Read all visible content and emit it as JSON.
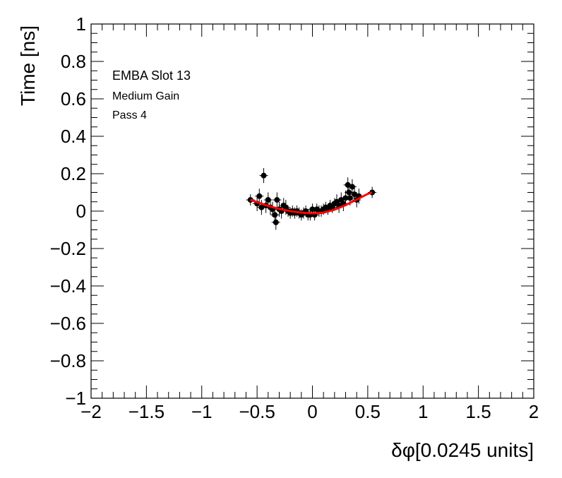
{
  "chart_data": {
    "type": "scatter",
    "title": "",
    "xlabel": "δφ[0.0245 units]",
    "ylabel": "Time [ns]",
    "xlim": [
      -2,
      2
    ],
    "ylim": [
      -1,
      1
    ],
    "x_ticks": [
      "−2",
      "−1.5",
      "−1",
      "−0.5",
      "0",
      "0.5",
      "1",
      "1.5",
      "2"
    ],
    "y_ticks": [
      "1",
      "0.8",
      "0.6",
      "0.4",
      "0.2",
      "0",
      "−0.2",
      "−0.4",
      "−0.6",
      "−0.8",
      "−1"
    ],
    "annotations": [
      "EMBA Slot 13",
      "Medium Gain",
      "Pass 4"
    ],
    "grid": false,
    "colors": {
      "points": "#000000",
      "fit": "#ff0000"
    },
    "series": [
      {
        "kind": "points-with-error-bars",
        "x": [
          -0.56,
          -0.5,
          -0.48,
          -0.46,
          -0.44,
          -0.42,
          -0.4,
          -0.38,
          -0.36,
          -0.34,
          -0.33,
          -0.32,
          -0.3,
          -0.28,
          -0.26,
          -0.24,
          -0.22,
          -0.2,
          -0.18,
          -0.16,
          -0.14,
          -0.12,
          -0.1,
          -0.08,
          -0.06,
          -0.04,
          -0.02,
          0.0,
          0.02,
          0.04,
          0.06,
          0.08,
          0.1,
          0.12,
          0.14,
          0.16,
          0.18,
          0.2,
          0.22,
          0.24,
          0.26,
          0.28,
          0.3,
          0.32,
          0.33,
          0.34,
          0.36,
          0.38,
          0.4,
          0.42,
          0.54
        ],
        "y": [
          0.06,
          0.04,
          0.08,
          0.02,
          0.19,
          0.03,
          0.06,
          0.02,
          0.01,
          -0.02,
          -0.06,
          0.06,
          0.01,
          0.0,
          0.03,
          0.02,
          0.0,
          -0.01,
          0.0,
          -0.01,
          0.0,
          -0.01,
          -0.02,
          -0.01,
          0.0,
          -0.02,
          -0.02,
          0.01,
          -0.02,
          0.01,
          0.0,
          0.0,
          0.01,
          0.02,
          0.01,
          0.03,
          0.02,
          0.04,
          0.05,
          0.03,
          0.06,
          0.04,
          0.07,
          0.14,
          0.1,
          0.07,
          0.13,
          0.09,
          0.06,
          0.08,
          0.1
        ],
        "y_err": [
          0.03,
          0.04,
          0.04,
          0.04,
          0.04,
          0.04,
          0.04,
          0.04,
          0.04,
          0.04,
          0.04,
          0.04,
          0.04,
          0.04,
          0.04,
          0.04,
          0.03,
          0.03,
          0.03,
          0.03,
          0.03,
          0.03,
          0.03,
          0.03,
          0.03,
          0.03,
          0.03,
          0.03,
          0.03,
          0.03,
          0.03,
          0.03,
          0.03,
          0.03,
          0.03,
          0.03,
          0.03,
          0.03,
          0.04,
          0.04,
          0.04,
          0.04,
          0.04,
          0.04,
          0.04,
          0.04,
          0.04,
          0.04,
          0.04,
          0.04,
          0.03
        ]
      },
      {
        "kind": "fit-curve",
        "x": [
          -0.56,
          -0.5,
          -0.4,
          -0.3,
          -0.2,
          -0.1,
          0.0,
          0.1,
          0.2,
          0.3,
          0.4,
          0.5,
          0.54
        ],
        "y": [
          0.06,
          0.048,
          0.028,
          0.012,
          0.0,
          -0.008,
          -0.012,
          -0.008,
          0.008,
          0.032,
          0.062,
          0.092,
          0.1
        ]
      }
    ]
  }
}
